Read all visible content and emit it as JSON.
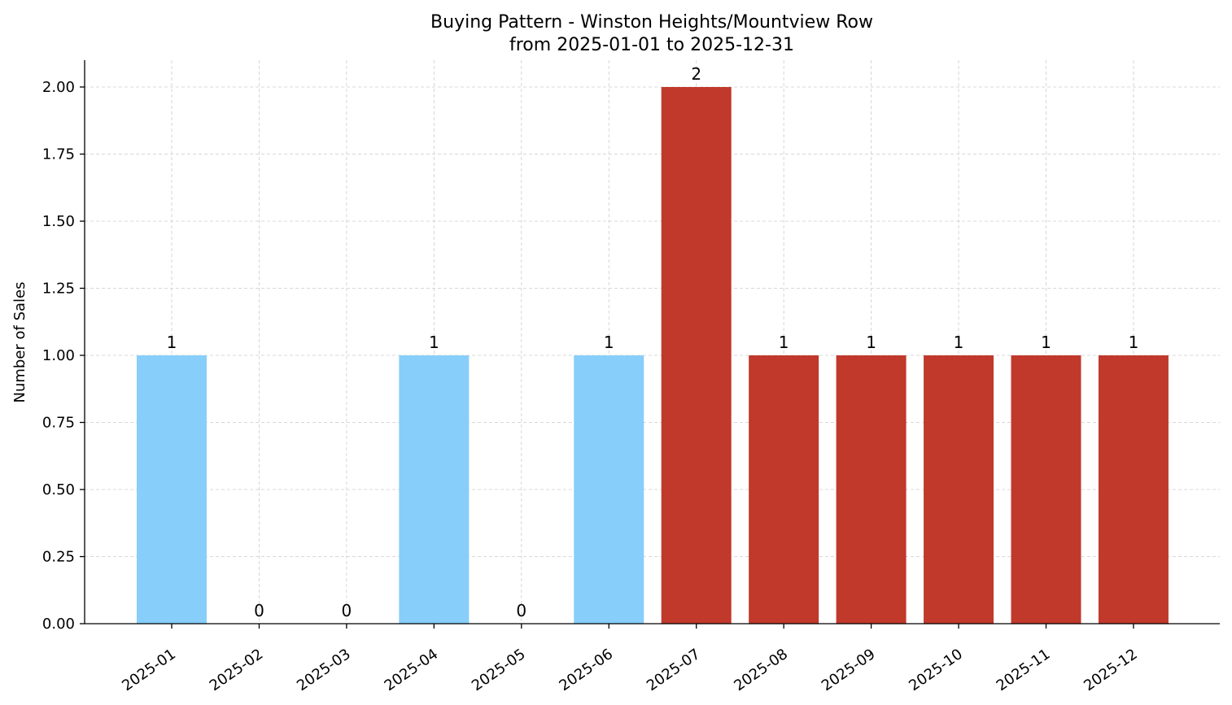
{
  "chart_data": {
    "type": "bar",
    "title": "Buying Pattern - Winston Heights/Mountview Row",
    "subtitle": "from 2025-01-01 to 2025-12-31",
    "xlabel": "",
    "ylabel": "Number of Sales",
    "categories": [
      "2025-01",
      "2025-02",
      "2025-03",
      "2025-04",
      "2025-05",
      "2025-06",
      "2025-07",
      "2025-08",
      "2025-09",
      "2025-10",
      "2025-11",
      "2025-12"
    ],
    "values": [
      1,
      0,
      0,
      1,
      0,
      1,
      2,
      1,
      1,
      1,
      1,
      1
    ],
    "data_labels": [
      "1",
      "0",
      "0",
      "1",
      "0",
      "1",
      "2",
      "1",
      "1",
      "1",
      "1",
      "1"
    ],
    "bar_colors": [
      "#87CEFA",
      "#87CEFA",
      "#87CEFA",
      "#87CEFA",
      "#87CEFA",
      "#87CEFA",
      "#C0392B",
      "#C0392B",
      "#C0392B",
      "#C0392B",
      "#C0392B",
      "#C0392B"
    ],
    "ylim": [
      0,
      2.1
    ],
    "yticks": [
      0,
      0.25,
      0.5,
      0.75,
      1.0,
      1.25,
      1.5,
      1.75,
      2.0
    ],
    "ytick_labels": [
      "0.00",
      "0.25",
      "0.50",
      "0.75",
      "1.00",
      "1.25",
      "1.50",
      "1.75",
      "2.00"
    ],
    "grid": true,
    "legend": "none"
  }
}
